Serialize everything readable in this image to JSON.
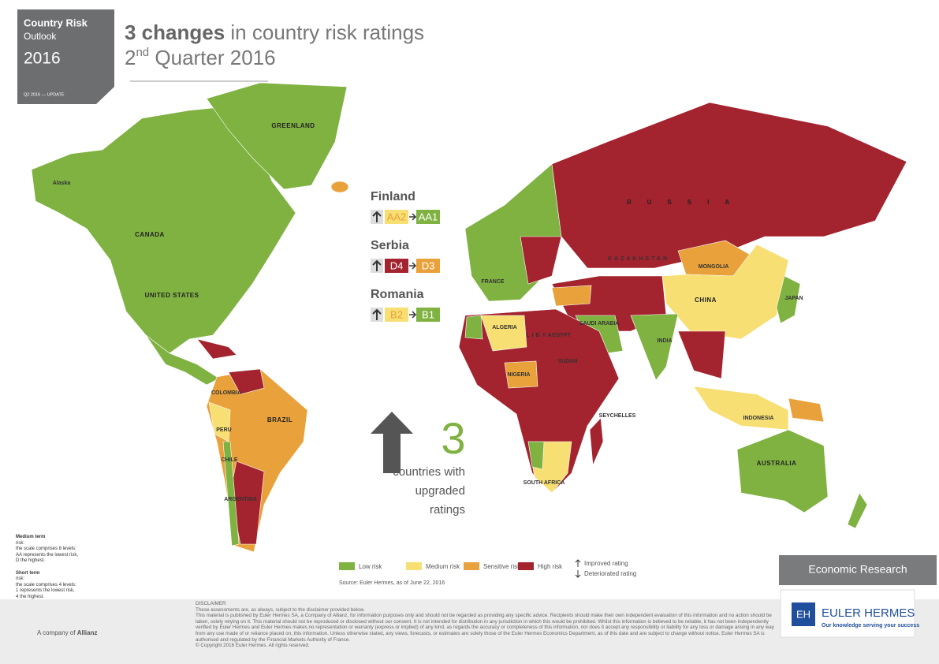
{
  "header": {
    "badge_title": "Country Risk",
    "badge_subtitle": "Outlook",
    "badge_year": "2016",
    "badge_update": "Q2 2016 — UPDATE",
    "title_bold": "3 changes",
    "title_rest": " in country risk ratings",
    "subtitle_number": "2",
    "subtitle_sup": "nd",
    "subtitle_rest": " Quarter 2016"
  },
  "changes": [
    {
      "country": "Finland",
      "from": "AA2",
      "to": "AA1",
      "from_color": "#f7df73",
      "to_color": "#7fb241"
    },
    {
      "country": "Serbia",
      "from": "D4",
      "to": "D3",
      "from_color": "#a3232f",
      "to_color": "#e9a23b"
    },
    {
      "country": "Romania",
      "from": "B2",
      "to": "B1",
      "from_color": "#f7df73",
      "to_color": "#7fb241"
    }
  ],
  "summary": {
    "count": "3",
    "lines": [
      "countries with",
      "upgraded",
      "ratings"
    ]
  },
  "legend": {
    "items": [
      {
        "label": "Low risk",
        "color": "#7fb241"
      },
      {
        "label": "Medium risk",
        "color": "#f7df73"
      },
      {
        "label": "Sensitive risk",
        "color": "#e9a23b"
      },
      {
        "label": "High risk",
        "color": "#a3232f"
      }
    ],
    "improved": "Improved rating",
    "deteriorated": "Deteriorated rating",
    "source": "Source: Euler Hermes, as of June 22, 2016"
  },
  "map_labels": [
    "GREENLAND",
    "Alaska",
    "CANADA",
    "UNITED STATES",
    "BRAZIL",
    "ARGENTINA",
    "COLOMBIA",
    "PERU",
    "CHILE",
    "RUSSIA",
    "KAZAKHSTAN",
    "MONGOLIA",
    "CHINA",
    "INDIA",
    "ALGERIA",
    "LIBYA",
    "EGYPT",
    "NIGERIA",
    "SOUTH AFRICA",
    "AUSTRALIA",
    "JAPAN",
    "INDONESIA",
    "SEYCHELLES",
    "SUDAN",
    "SAUDI ARABIA",
    "FRANCE"
  ],
  "notes": [
    {
      "heading": "Medium term",
      "lines": [
        "risk:",
        "the scale comprises 8 levels:",
        "AA represents the lowest risk,",
        "D the highest."
      ]
    },
    {
      "heading": "Short term",
      "lines": [
        "risk:",
        "the scale comprises 4 levels:",
        "1 represents the lowest risk,",
        "4 the highest."
      ]
    }
  ],
  "disclaimer": {
    "heading": "DISCLAIMER",
    "paragraphs": [
      "These assessments are, as always, subject to the disclaimer provided below.",
      "This material is published by Euler Hermes SA, a Company of Allianz, for information purposes only and should not be regarded as providing any specific advice. Recipients should make their own independent evaluation of this information and no action should be taken, solely relying on it. This material should not be reproduced or disclosed without our consent. It is not intended for distribution in any jurisdiction in which this would be prohibited. Whilst this information is believed to be reliable, it has not been independently verified by Euler Hermes and Euler Hermes makes no representation or warranty (express or implied) of any kind, as regards the accuracy or completeness of this information, nor does it accept any responsibility or liability for any loss or damage arising in any way from any use made of or reliance placed on, this information. Unless otherwise stated, any views, forecasts, or estimates are solely those of the Euler Hermes Economics Department, as of this date and are subject to change without notice. Euler Hermes SA is authorised and regulated by the Financial Markets Authority of France.",
      "© Copyright 2016 Euler Hermes. All rights reserved."
    ]
  },
  "footer": {
    "company_prefix": "A company of ",
    "company_name": "Allianz",
    "research": "Economic Research",
    "logo": "EH",
    "brand": "EULER HERMES",
    "tagline": "Our knowledge serving your success"
  }
}
